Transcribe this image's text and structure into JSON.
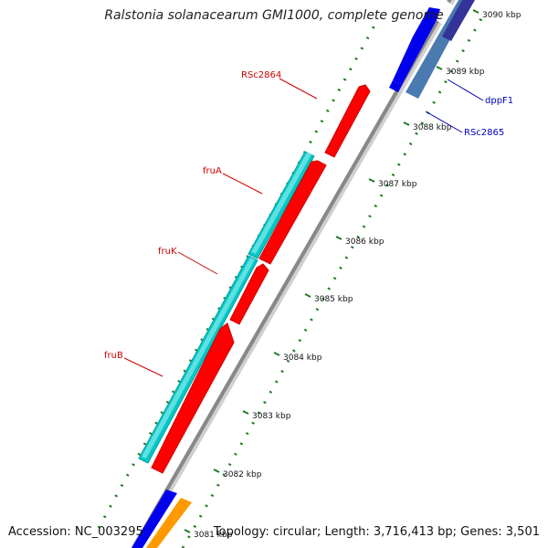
{
  "title": "Ralstonia solanacearum GMI1000, complete genome",
  "accession": "Accession: NC_003295",
  "topology": "Topology: circular; Length: 3,716,413 bp; Genes: 3,501",
  "colors": {
    "backbone": "#8a8a8a",
    "dots": "#1f7a1f",
    "red_label": "#cc0000",
    "blue_label": "#0000bb"
  },
  "ticks": [
    {
      "label": "3081 kbp"
    },
    {
      "label": "3082 kbp"
    },
    {
      "label": "3083 kbp"
    },
    {
      "label": "3084 kbp"
    },
    {
      "label": "3085 kbp"
    },
    {
      "label": "3086 kbp"
    },
    {
      "label": "3087 kbp"
    },
    {
      "label": "3088 kbp"
    },
    {
      "label": "3089 kbp"
    },
    {
      "label": "3090 kbp"
    }
  ],
  "genes": [
    {
      "name": "RSc2864",
      "color": "#ff0000",
      "label_color": "red"
    },
    {
      "name": "fruA",
      "color": "#ff0000",
      "label_color": "red"
    },
    {
      "name": "fruK",
      "color": "#ff0000",
      "label_color": "red"
    },
    {
      "name": "fruB",
      "color": "#ff0000",
      "label_color": "red"
    },
    {
      "name": "dppF1",
      "color": "#0000ff",
      "label_color": "blue"
    },
    {
      "name": "RSc2865",
      "color": "#0000ff",
      "label_color": "blue"
    }
  ]
}
